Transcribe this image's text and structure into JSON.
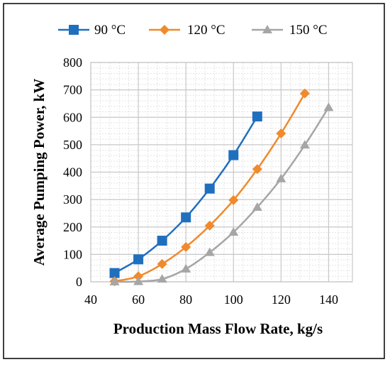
{
  "chart_data": {
    "type": "line",
    "xlabel": "Production Mass Flow Rate, kg/s",
    "ylabel": "Average Pumping Power, kW",
    "xlim": [
      40,
      150
    ],
    "ylim": [
      0,
      800
    ],
    "x_ticks": [
      40,
      60,
      80,
      100,
      120,
      140
    ],
    "x_tick_labels": [
      "40",
      "60",
      "80",
      "100",
      "120",
      "140"
    ],
    "y_ticks": [
      0,
      100,
      200,
      300,
      400,
      500,
      600,
      700,
      800
    ],
    "y_tick_labels": [
      "0",
      "100",
      "200",
      "300",
      "400",
      "500",
      "600",
      "700",
      "800"
    ],
    "grid": true,
    "minor_grid": true,
    "legend_position": "top",
    "series": [
      {
        "name": "90 °C",
        "color": "#1f6fbf",
        "marker": "square",
        "x": [
          50,
          60,
          70,
          80,
          90,
          100,
          110
        ],
        "values": [
          32,
          82,
          150,
          235,
          340,
          462,
          603
        ]
      },
      {
        "name": "120 °C",
        "color": "#f08a2c",
        "marker": "diamond",
        "x": [
          50,
          60,
          70,
          80,
          90,
          100,
          110,
          120,
          130
        ],
        "values": [
          2,
          20,
          65,
          127,
          205,
          298,
          411,
          541,
          687
        ]
      },
      {
        "name": "150 °C",
        "color": "#a6a6a6",
        "marker": "triangle",
        "x": [
          50,
          60,
          70,
          80,
          90,
          100,
          110,
          120,
          130,
          140
        ],
        "values": [
          0,
          1,
          10,
          47,
          107,
          181,
          272,
          376,
          499,
          636
        ]
      }
    ]
  }
}
